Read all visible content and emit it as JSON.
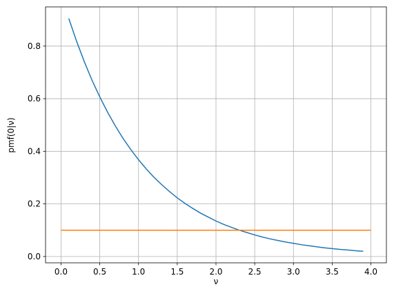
{
  "chart_data": {
    "type": "line",
    "xlabel": "ν",
    "ylabel": "pmf(0|ν)",
    "xlim": [
      -0.2,
      4.2
    ],
    "ylim": [
      -0.024,
      0.949
    ],
    "xticks": [
      {
        "value": 0,
        "label": "0.0"
      },
      0.5,
      {
        "value": 1,
        "label": "1.0"
      },
      1.5,
      {
        "value": 2,
        "label": "2.0"
      },
      2.5,
      {
        "value": 3,
        "label": "3.0"
      },
      3.5,
      {
        "value": 4,
        "label": "4.0"
      }
    ],
    "yticks": [
      {
        "value": 0,
        "label": "0.0"
      },
      0.2,
      0.4,
      0.6,
      0.8
    ],
    "grid": true,
    "series": [
      {
        "color": "#1f77b4",
        "x": [
          0.1,
          0.2,
          0.3,
          0.4,
          0.5,
          0.6,
          0.7,
          0.8,
          0.9,
          1.0,
          1.1,
          1.2,
          1.3,
          1.4,
          1.5,
          1.6,
          1.7,
          1.8,
          1.9,
          2.0,
          2.1,
          2.2,
          2.3,
          2.4,
          2.5,
          2.6,
          2.7,
          2.8,
          2.9,
          3.0,
          3.1,
          3.2,
          3.3,
          3.4,
          3.5,
          3.6,
          3.7,
          3.8,
          3.9
        ],
        "values": [
          0.905,
          0.819,
          0.741,
          0.67,
          0.607,
          0.549,
          0.497,
          0.449,
          0.407,
          0.368,
          0.333,
          0.301,
          0.273,
          0.247,
          0.223,
          0.202,
          0.183,
          0.165,
          0.15,
          0.135,
          0.122,
          0.111,
          0.1,
          0.091,
          0.082,
          0.074,
          0.067,
          0.061,
          0.055,
          0.05,
          0.045,
          0.041,
          0.037,
          0.033,
          0.03,
          0.027,
          0.025,
          0.022,
          0.02
        ]
      },
      {
        "color": "#ff7f0e",
        "x": [
          0,
          4
        ],
        "values": [
          0.1,
          0.1
        ]
      }
    ]
  }
}
